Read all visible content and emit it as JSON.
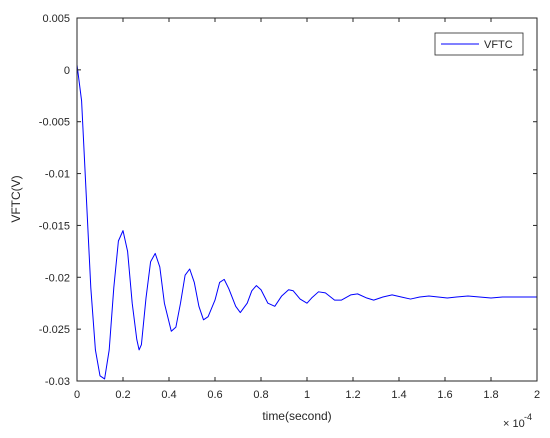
{
  "chart_data": {
    "type": "line",
    "title": "",
    "xlabel": "time(second)",
    "ylabel": "VFTC(V)",
    "x_multiplier": "× 10",
    "x_exponent": "-4",
    "xlim": [
      0,
      2
    ],
    "ylim": [
      -0.03,
      0.005
    ],
    "x_scale": 0.0001,
    "xticks": [
      "0",
      "0.2",
      "0.4",
      "0.6",
      "0.8",
      "1",
      "1.2",
      "1.4",
      "1.6",
      "1.8",
      "2"
    ],
    "yticks": [
      "0.005",
      "0",
      "-0.005",
      "-0.01",
      "-0.015",
      "-0.02",
      "-0.025",
      "-0.03"
    ],
    "grid": false,
    "legend_position": "top-right",
    "series": [
      {
        "name": "VFTC",
        "color": "#0000ff",
        "x": [
          0,
          0.02,
          0.04,
          0.06,
          0.08,
          0.1,
          0.12,
          0.14,
          0.16,
          0.18,
          0.2,
          0.22,
          0.24,
          0.26,
          0.27,
          0.28,
          0.3,
          0.32,
          0.34,
          0.36,
          0.38,
          0.41,
          0.43,
          0.45,
          0.47,
          0.49,
          0.51,
          0.53,
          0.55,
          0.57,
          0.6,
          0.62,
          0.64,
          0.66,
          0.69,
          0.71,
          0.74,
          0.76,
          0.78,
          0.8,
          0.83,
          0.86,
          0.89,
          0.92,
          0.94,
          0.97,
          1.0,
          1.02,
          1.05,
          1.08,
          1.12,
          1.15,
          1.19,
          1.22,
          1.26,
          1.29,
          1.33,
          1.37,
          1.41,
          1.45,
          1.49,
          1.53,
          1.57,
          1.61,
          1.65,
          1.7,
          1.75,
          1.8,
          1.85,
          1.9,
          1.95,
          2.0
        ],
        "y": [
          0.0005,
          -0.003,
          -0.012,
          -0.021,
          -0.027,
          -0.0295,
          -0.0298,
          -0.027,
          -0.021,
          -0.0165,
          -0.0155,
          -0.0175,
          -0.0225,
          -0.026,
          -0.027,
          -0.0265,
          -0.022,
          -0.0185,
          -0.0177,
          -0.019,
          -0.0225,
          -0.0252,
          -0.0248,
          -0.0225,
          -0.0198,
          -0.0192,
          -0.0205,
          -0.0228,
          -0.0241,
          -0.0238,
          -0.0222,
          -0.0205,
          -0.0202,
          -0.0211,
          -0.0228,
          -0.0234,
          -0.0225,
          -0.0213,
          -0.0208,
          -0.0212,
          -0.0225,
          -0.0228,
          -0.0218,
          -0.0212,
          -0.0213,
          -0.0221,
          -0.0225,
          -0.022,
          -0.0214,
          -0.0215,
          -0.0222,
          -0.0222,
          -0.0217,
          -0.0216,
          -0.022,
          -0.0222,
          -0.0219,
          -0.0217,
          -0.0219,
          -0.0221,
          -0.0219,
          -0.0218,
          -0.0219,
          -0.022,
          -0.0219,
          -0.0218,
          -0.0219,
          -0.022,
          -0.0219,
          -0.0219,
          -0.0219,
          -0.0219
        ]
      }
    ]
  }
}
